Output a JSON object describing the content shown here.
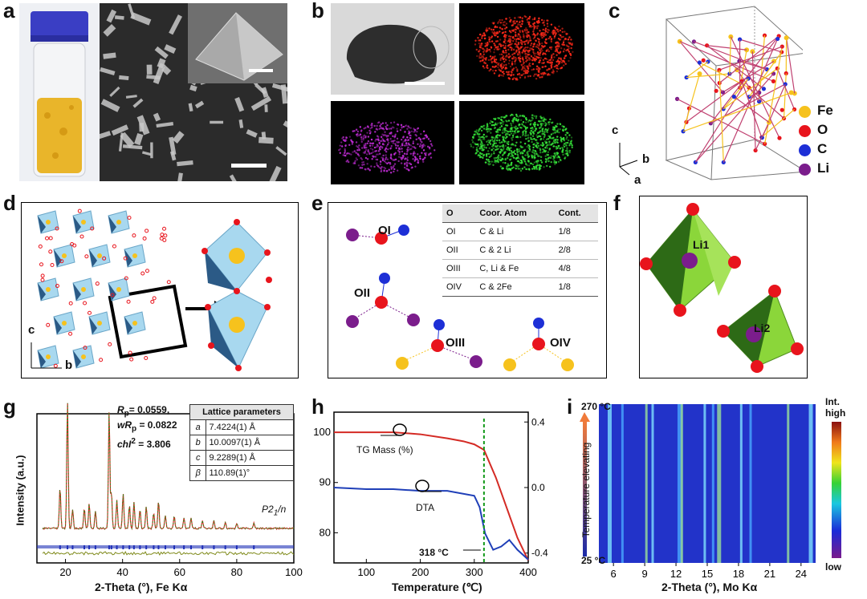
{
  "panels": {
    "a": "a",
    "b": "b",
    "c": "c",
    "d": "d",
    "e": "e",
    "f": "f",
    "g": "g",
    "h": "h",
    "i": "i"
  },
  "colors": {
    "Fe": "#f6c21d",
    "O": "#e8141c",
    "C": "#1d2fd6",
    "Li": "#7b1d8c",
    "tg": "#d42a24",
    "dta": "#1f3fb8",
    "marker": "#139a1a"
  },
  "panel_c": {
    "legend": [
      {
        "label": "Fe",
        "color": "#f6c21d"
      },
      {
        "label": "O",
        "color": "#e8141c"
      },
      {
        "label": "C",
        "color": "#1d2fd6"
      },
      {
        "label": "Li",
        "color": "#7b1d8c"
      }
    ],
    "axes": {
      "c": "c",
      "b": "b",
      "a": "a"
    }
  },
  "panel_d": {
    "axes": {
      "c": "c",
      "b": "b"
    }
  },
  "panel_e": {
    "headers": [
      "O",
      "Coor. Atom",
      "Cont."
    ],
    "rows": [
      [
        "OI",
        "C & Li",
        "1/8"
      ],
      [
        "OII",
        "C & 2 Li",
        "2/8"
      ],
      [
        "OIII",
        "C, Li & Fe",
        "4/8"
      ],
      [
        "OIV",
        "C & 2Fe",
        "1/8"
      ]
    ],
    "site_labels": [
      "OI",
      "OII",
      "OIII",
      "OIV"
    ]
  },
  "panel_f": {
    "labels": [
      "Li1",
      "Li2"
    ]
  },
  "panel_g": {
    "rp": "R",
    "rp_sub": "p",
    "rp_val": "= 0.0559,",
    "wrp": "wR",
    "wrp_sub": "p",
    "wrp_val": " = 0.0822",
    "chi": "chI",
    "chi_sup": "2",
    "chi_val": " = 3.806",
    "table_title": "Lattice parameters",
    "table": [
      [
        "a",
        "7.4224(1) Å"
      ],
      [
        "b",
        "10.0097(1) Å"
      ],
      [
        "c",
        "9.2289(1) Å"
      ],
      [
        "β",
        "110.89(1)°"
      ]
    ],
    "space_group": "P2",
    "space_group_sub": "1",
    "space_group_end": "/n",
    "ylabel": "Intensity (a.u.)",
    "xlabel": "2-Theta (°), Fe Kα",
    "xticks": [
      "20",
      "40",
      "60",
      "80",
      "100"
    ]
  },
  "panel_h": {
    "ylabel": "",
    "xlabel": "Temperature (℃)",
    "yticks_left": [
      "100",
      "90",
      "80"
    ],
    "yticks_right": [
      "0.4",
      "0.0",
      "-0.4"
    ],
    "xticks": [
      "100",
      "200",
      "300",
      "400"
    ],
    "tg_label": "TG Mass (%)",
    "dta_label": "DTA",
    "marker_label": "318 °C"
  },
  "panel_i": {
    "ylabel": "Temperature elevating",
    "top_temp": "270 °C",
    "bottom_temp": "25 °C",
    "xlabel": "2-Theta (°), Mo Kα",
    "xticks": [
      "6",
      "9",
      "12",
      "15",
      "18",
      "21",
      "24"
    ],
    "cbar_top": "Int.",
    "cbar_top2": "high",
    "cbar_bottom": "low"
  },
  "chart_data": [
    {
      "type": "line",
      "panel": "h",
      "xlabel": "Temperature (℃)",
      "xlim": [
        40,
        400
      ],
      "series": [
        {
          "name": "TG Mass (%)",
          "x": [
            40,
            100,
            150,
            200,
            250,
            280,
            300,
            318,
            340,
            360,
            380,
            400
          ],
          "y": [
            100,
            100,
            100,
            99.6,
            98.8,
            98.2,
            97.6,
            96.5,
            91,
            85,
            79,
            74.5
          ]
        },
        {
          "name": "DTA",
          "x": [
            40,
            100,
            150,
            200,
            250,
            300,
            310,
            320,
            335,
            350,
            365,
            380,
            400
          ],
          "y": [
            0.0,
            -0.01,
            -0.01,
            -0.02,
            -0.02,
            -0.05,
            -0.12,
            -0.28,
            -0.38,
            -0.36,
            -0.32,
            -0.38,
            -0.44
          ]
        }
      ],
      "ylim_left": [
        74,
        104
      ],
      "ylim_right": [
        -0.46,
        0.46
      ],
      "annotation": "318 °C"
    },
    {
      "type": "line",
      "panel": "g",
      "xlabel": "2-Theta (°), Fe Kα",
      "xlim": [
        10,
        100
      ],
      "peaks_2theta": [
        18.1,
        20.7,
        22.5,
        26.6,
        28.3,
        30.5,
        35.3,
        36.1,
        38.0,
        40.2,
        42.4,
        44.0,
        46.1,
        48.3,
        50.9,
        52.6,
        55.0,
        58.1,
        61.5,
        64.0,
        68.0,
        72.0,
        76.0,
        80.0,
        86.0
      ],
      "peaks_intensity": [
        0.32,
        1.0,
        0.15,
        0.16,
        0.2,
        0.14,
        0.92,
        0.28,
        0.22,
        0.27,
        0.18,
        0.21,
        0.15,
        0.17,
        0.12,
        0.22,
        0.1,
        0.1,
        0.08,
        0.08,
        0.06,
        0.06,
        0.05,
        0.04,
        0.04
      ]
    }
  ]
}
